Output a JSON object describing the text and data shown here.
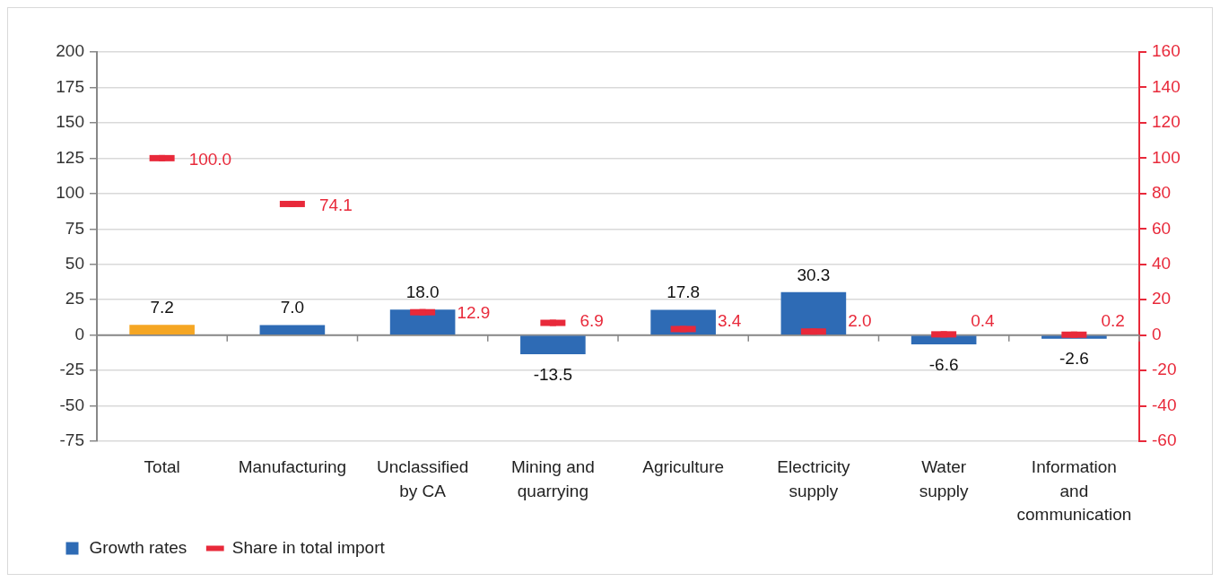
{
  "chart_data": {
    "type": "bar",
    "categories": [
      "Total",
      "Manufacturing",
      "Unclassified by CA",
      "Mining and quarrying",
      "Agriculture",
      "Electricity supply",
      "Water supply",
      "Information and communication"
    ],
    "series": [
      {
        "name": "Growth rates",
        "type": "bar",
        "color": "#2e6bb5",
        "colors": [
          "#f5a623",
          "#2e6bb5",
          "#2e6bb5",
          "#2e6bb5",
          "#2e6bb5",
          "#2e6bb5",
          "#2e6bb5",
          "#2e6bb5"
        ],
        "values": [
          7.2,
          7.0,
          18.0,
          -13.5,
          17.8,
          30.3,
          -6.6,
          -2.6
        ],
        "value_labels": [
          "7.2",
          "7.0",
          "18.0",
          "-13.5",
          "17.8",
          "30.3",
          "-6.6",
          "-2.6"
        ]
      },
      {
        "name": "Share in total import",
        "type": "scatter",
        "axis": "y2",
        "color": "#e8293a",
        "x": [
          "Total",
          "Manufacturing",
          "Unclassified by CA",
          "Mining and quarrying",
          "Agriculture",
          "Electricity supply",
          "Water supply",
          "Information and communication"
        ],
        "values": [
          100.0,
          74.1,
          12.9,
          6.9,
          3.4,
          2.0,
          0.4,
          0.2
        ],
        "value_labels": [
          "100.0",
          "74.1",
          "12.9",
          "6.9",
          "3.4",
          "2.0",
          "0.4",
          "0.2"
        ]
      }
    ],
    "ylim": [
      -75,
      200
    ],
    "yticks": [
      -75,
      -50,
      -25,
      0,
      25,
      50,
      75,
      100,
      125,
      150,
      175,
      200
    ],
    "y2lim": [
      -60,
      160
    ],
    "y2ticks": [
      -60,
      -40,
      -20,
      0,
      20,
      40,
      60,
      80,
      100,
      120,
      140,
      160
    ],
    "grid": "y",
    "legend": "bottom left"
  }
}
